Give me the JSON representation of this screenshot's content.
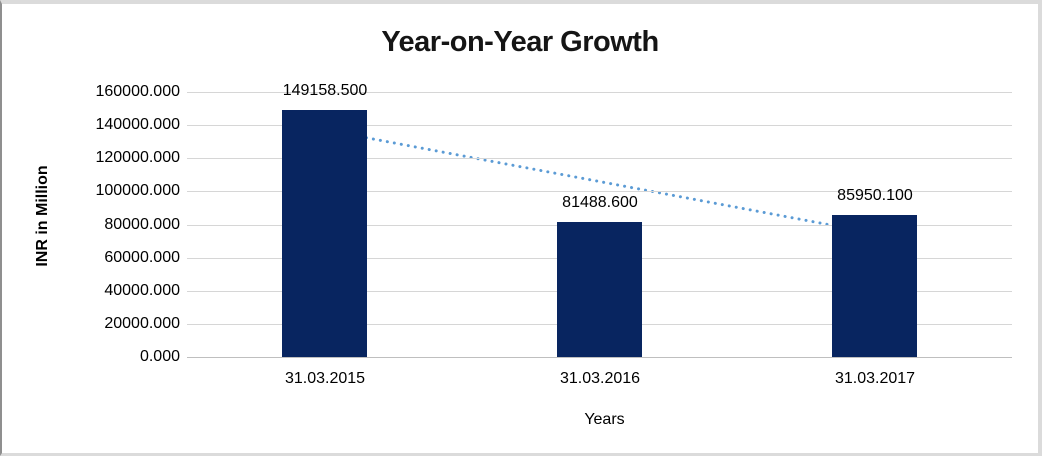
{
  "window": {
    "background": "#FFFFFF",
    "border_color": "#DBDBDB"
  },
  "chart_data": {
    "type": "bar",
    "title": "Year-on-Year Growth",
    "categories": [
      "31.03.2015",
      "31.03.2016",
      "31.03.2017"
    ],
    "values": [
      149158.5,
      81488.6,
      85950.1
    ],
    "data_labels": [
      "149158.500",
      "81488.600",
      "85950.100"
    ],
    "xlabel": "Years",
    "ylabel": "INR in Million",
    "ylim": [
      0,
      160000
    ],
    "ytick_step": 20000,
    "ytick_labels": [
      "0.000",
      "20000.000",
      "40000.000",
      "60000.000",
      "80000.000",
      "100000.000",
      "120000.000",
      "140000.000",
      "160000.000"
    ],
    "grid": true,
    "legend": "none",
    "bar_color": "#082560",
    "gridline_color": "#D6D6D6",
    "trendline": {
      "type": "linear",
      "style": "dotted",
      "color": "#5B9BD5",
      "endpoint_values": [
        137137,
        73928
      ]
    }
  }
}
